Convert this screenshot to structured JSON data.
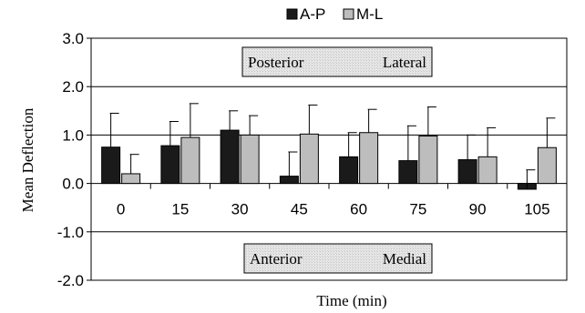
{
  "chart_data": {
    "type": "bar",
    "title": "",
    "xlabel": "Time (min)",
    "ylabel": "Mean Deflection",
    "ylim": [
      -2.0,
      3.0
    ],
    "yticks": [
      "3.0",
      "2.0",
      "1.0",
      "0.0",
      "-1.0",
      "-2.0"
    ],
    "ytick_values": [
      3.0,
      2.0,
      1.0,
      0.0,
      -1.0,
      -2.0
    ],
    "categories": [
      "0",
      "15",
      "30",
      "45",
      "60",
      "75",
      "90",
      "105"
    ],
    "series": [
      {
        "name": "A-P",
        "color": "#1a1a1a",
        "values": [
          0.75,
          0.78,
          1.1,
          0.15,
          0.55,
          0.47,
          0.49,
          -0.12
        ],
        "error": [
          0.7,
          0.5,
          0.4,
          0.5,
          0.5,
          0.72,
          0.51,
          0.4
        ]
      },
      {
        "name": "M-L",
        "color": "#bdbdbd",
        "values": [
          0.2,
          0.95,
          1.0,
          1.02,
          1.05,
          0.98,
          0.55,
          0.74
        ],
        "error": [
          0.4,
          0.7,
          0.4,
          0.6,
          0.48,
          0.6,
          0.6,
          0.61
        ]
      }
    ],
    "legend": "top",
    "grid": true,
    "annotations": {
      "top_box": {
        "left": "Posterior",
        "right": "Lateral"
      },
      "bottom_box": {
        "left": "Anterior",
        "right": "Medial"
      }
    }
  }
}
